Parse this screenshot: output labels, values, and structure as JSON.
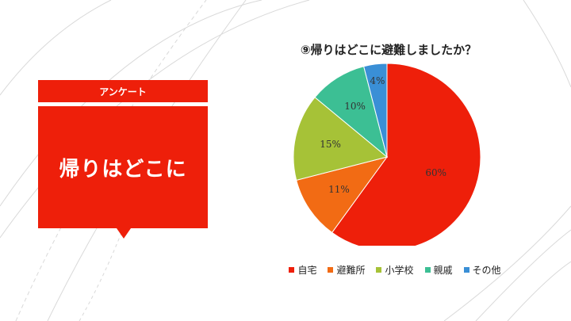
{
  "slide": {
    "tag_label": "アンケート",
    "title": "帰りはどこに"
  },
  "colors": {
    "accent": "#ee1f0a"
  },
  "chart_data": {
    "type": "pie",
    "title": "⑨帰りはどこに避難しましたか？",
    "categories": [
      "自宅",
      "避難所",
      "小学校",
      "親戚",
      "その他"
    ],
    "values": [
      60,
      11,
      15,
      10,
      4
    ],
    "labels": [
      "60%",
      "11%",
      "15%",
      "10%",
      "4%"
    ],
    "colors": [
      "#ee1f0a",
      "#f26b14",
      "#a6c237",
      "#3cbf94",
      "#3a8fd6"
    ],
    "legend_position": "bottom"
  }
}
